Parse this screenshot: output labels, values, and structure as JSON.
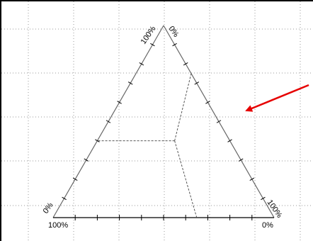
{
  "diagram": {
    "type": "ternary-plot",
    "colors": {
      "background": "#ffffff",
      "frame": "#000000",
      "grid": "#9a9a9a",
      "triangle": "#666666",
      "dashed": "#555555",
      "ticks": "#000000",
      "arrow": "#e60000"
    },
    "grid": "dotted",
    "labels": {
      "apex_left": "100%",
      "apex_right": "0%",
      "bottom_left_side": "0%",
      "bottom_left_base": "100%",
      "bottom_right_side": "100%",
      "bottom_right_base": "0%"
    },
    "point": {
      "a": 0.4,
      "b": 0.25,
      "c": 0.35
    },
    "ticks_per_side": 10,
    "arrow": {
      "color": "#e60000",
      "direction": "points-left-down"
    }
  }
}
